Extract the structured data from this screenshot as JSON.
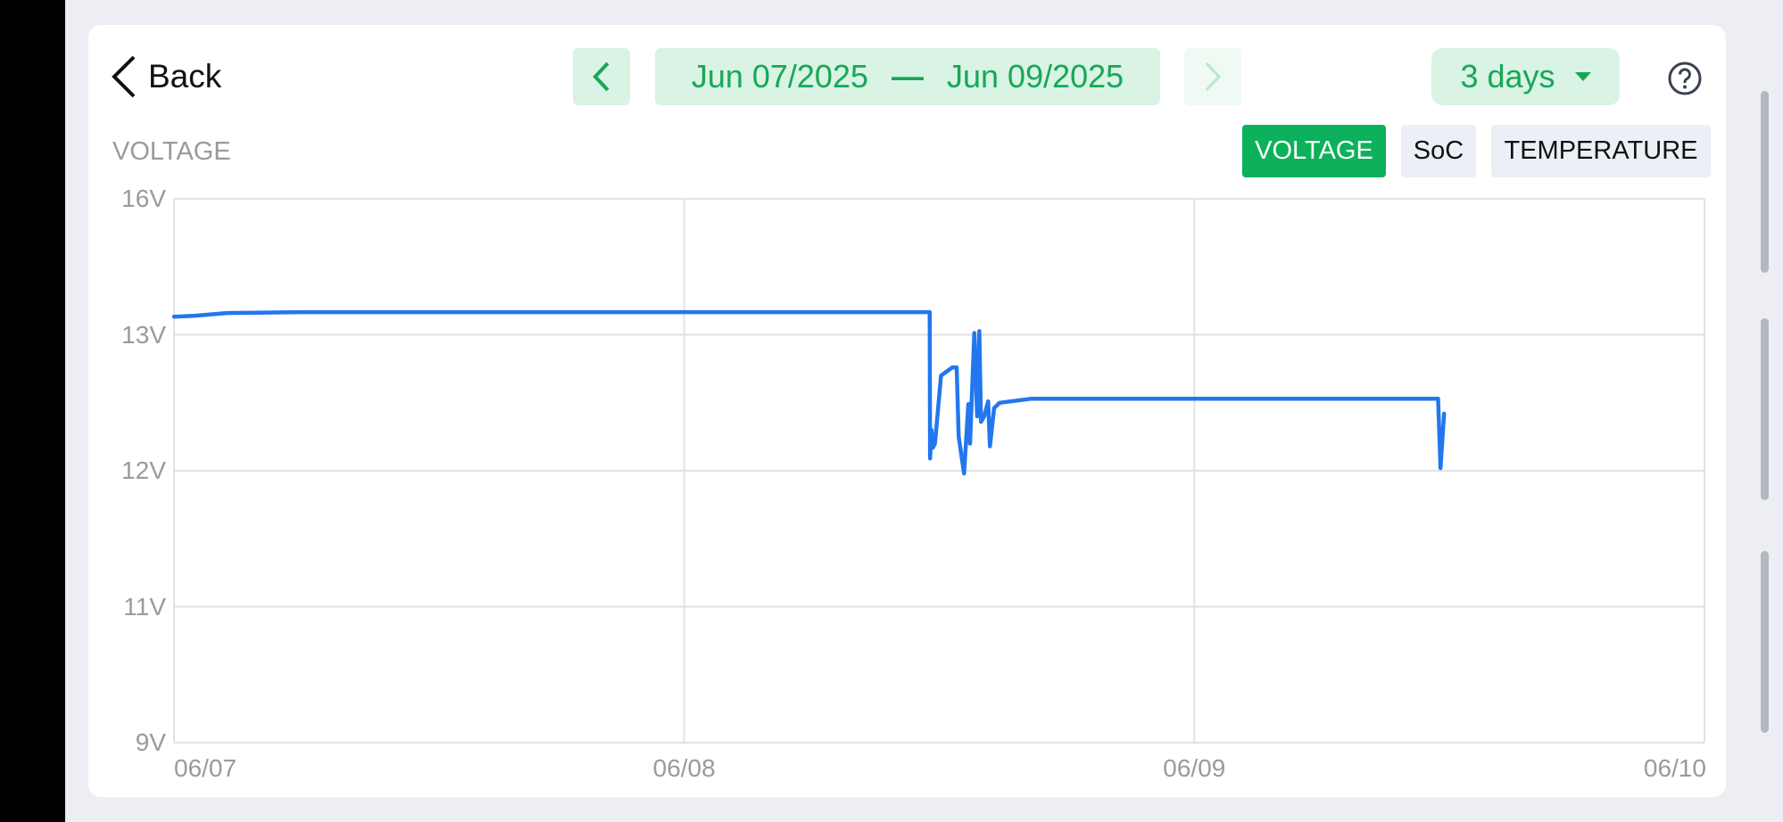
{
  "header": {
    "back_label": "Back",
    "date_start": "Jun 07/2025",
    "date_separator": "—",
    "date_end": "Jun 09/2025",
    "range_select": "3 days",
    "icons": {
      "back": "chevron-left-icon",
      "prev": "chevron-left-icon",
      "next": "chevron-right-icon",
      "help": "question-circle-icon",
      "dropdown": "caret-down-icon"
    }
  },
  "chart_section": {
    "label": "VOLTAGE",
    "tabs": [
      {
        "label": "VOLTAGE",
        "active": true
      },
      {
        "label": "SoC",
        "active": false
      },
      {
        "label": "TEMPERATURE",
        "active": false
      }
    ]
  },
  "colors": {
    "accent": "#0db15b",
    "accent_text": "#17a757",
    "line": "#2277ee"
  },
  "chart_data": {
    "type": "line",
    "title": "VOLTAGE",
    "xlabel": "",
    "ylabel": "",
    "y_ticks": [
      9,
      11,
      12,
      13,
      16
    ],
    "y_tick_labels": [
      "9V",
      "11V",
      "12V",
      "13V",
      "16V"
    ],
    "x_ticks": [
      "2025-06-07T00:00",
      "2025-06-08T00:00",
      "2025-06-09T00:00",
      "2025-06-10T00:00"
    ],
    "x_tick_labels": [
      "06/07",
      "06/08",
      "06/09",
      "06/10"
    ],
    "xlim": [
      "2025-06-07T00:00",
      "2025-06-10T00:00"
    ],
    "ylim": [
      9,
      16
    ],
    "grid": true,
    "series": [
      {
        "points": [
          [
            "2025-06-07T00:00",
            13.4
          ],
          [
            "2025-06-07T01:00",
            13.42
          ],
          [
            "2025-06-07T02:30",
            13.48
          ],
          [
            "2025-06-07T06:00",
            13.5
          ],
          [
            "2025-06-08T11:33",
            13.5
          ],
          [
            "2025-06-08T11:34",
            12.09
          ],
          [
            "2025-06-08T11:38",
            12.3
          ],
          [
            "2025-06-08T11:42",
            12.17
          ],
          [
            "2025-06-08T11:48",
            12.2
          ],
          [
            "2025-06-08T12:05",
            12.7
          ],
          [
            "2025-06-08T12:37",
            12.76
          ],
          [
            "2025-06-08T12:49",
            12.76
          ],
          [
            "2025-06-08T12:55",
            12.25
          ],
          [
            "2025-06-08T13:10",
            11.98
          ],
          [
            "2025-06-08T13:22",
            12.49
          ],
          [
            "2025-06-08T13:27",
            12.2
          ],
          [
            "2025-06-08T13:39",
            13.04
          ],
          [
            "2025-06-08T13:47",
            12.4
          ],
          [
            "2025-06-08T13:53",
            13.08
          ],
          [
            "2025-06-08T13:58",
            12.36
          ],
          [
            "2025-06-08T14:07",
            12.4
          ],
          [
            "2025-06-08T14:18",
            12.51
          ],
          [
            "2025-06-08T14:23",
            12.18
          ],
          [
            "2025-06-08T14:35",
            12.46
          ],
          [
            "2025-06-08T14:50",
            12.5
          ],
          [
            "2025-06-08T16:21",
            12.53
          ],
          [
            "2025-06-09T11:28",
            12.53
          ],
          [
            "2025-06-09T11:35",
            12.02
          ],
          [
            "2025-06-09T11:45",
            12.42
          ]
        ]
      }
    ]
  }
}
